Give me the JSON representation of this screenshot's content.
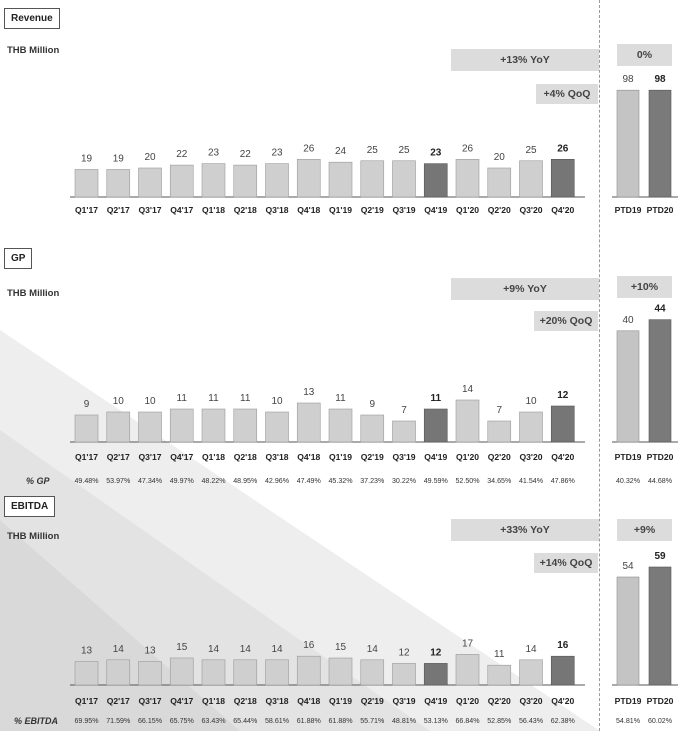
{
  "unit_label": "THB Million",
  "chart_data": [
    {
      "type": "bar",
      "title": "Revenue",
      "ylabel": "THB Million",
      "categories": [
        "Q1'17",
        "Q2'17",
        "Q3'17",
        "Q4'17",
        "Q1'18",
        "Q2'18",
        "Q3'18",
        "Q4'18",
        "Q1'19",
        "Q2'19",
        "Q3'19",
        "Q4'19",
        "Q1'20",
        "Q2'20",
        "Q3'20",
        "Q4'20"
      ],
      "values": [
        19,
        19,
        20,
        22,
        23,
        22,
        23,
        26,
        24,
        25,
        25,
        23,
        26,
        20,
        25,
        26
      ],
      "highlight": [
        "Q4'19",
        "Q4'20"
      ],
      "ytd": {
        "categories": [
          "PTD19",
          "PTD20"
        ],
        "values": [
          98,
          98
        ]
      },
      "yoy": "+13% YoY",
      "qoq": "+4% QoQ",
      "ytd_change": "0%"
    },
    {
      "type": "bar",
      "title": "GP",
      "ylabel": "THB Million",
      "categories": [
        "Q1'17",
        "Q2'17",
        "Q3'17",
        "Q4'17",
        "Q1'18",
        "Q2'18",
        "Q3'18",
        "Q4'18",
        "Q1'19",
        "Q2'19",
        "Q3'19",
        "Q4'19",
        "Q1'20",
        "Q2'20",
        "Q3'20",
        "Q4'20"
      ],
      "values": [
        9,
        10,
        10,
        11,
        11,
        11,
        10,
        13,
        11,
        9,
        7,
        11,
        14,
        7,
        10,
        12
      ],
      "highlight": [
        "Q4'19",
        "Q4'20"
      ],
      "ytd": {
        "categories": [
          "PTD19",
          "PTD20"
        ],
        "values": [
          40,
          44
        ]
      },
      "yoy": "+9% YoY",
      "qoq": "+20% QoQ",
      "ytd_change": "+10%",
      "margin_label": "% GP",
      "margins": [
        "49.48%",
        "53.97%",
        "47.34%",
        "49.97%",
        "48.22%",
        "48.95%",
        "42.96%",
        "47.49%",
        "45.32%",
        "37.23%",
        "30.22%",
        "49.59%",
        "52.50%",
        "34.65%",
        "41.54%",
        "47.86%"
      ],
      "ytd_margins": [
        "40.32%",
        "44.68%"
      ]
    },
    {
      "type": "bar",
      "title": "EBITDA",
      "ylabel": "THB Million",
      "categories": [
        "Q1'17",
        "Q2'17",
        "Q3'17",
        "Q4'17",
        "Q1'18",
        "Q2'18",
        "Q3'18",
        "Q4'18",
        "Q1'19",
        "Q2'19",
        "Q3'19",
        "Q4'19",
        "Q1'20",
        "Q2'20",
        "Q3'20",
        "Q4'20"
      ],
      "values": [
        13,
        14,
        13,
        15,
        14,
        14,
        14,
        16,
        15,
        14,
        12,
        12,
        17,
        11,
        14,
        16
      ],
      "highlight": [
        "Q4'19",
        "Q4'20"
      ],
      "ytd": {
        "categories": [
          "PTD19",
          "PTD20"
        ],
        "values": [
          54,
          59
        ]
      },
      "yoy": "+33% YoY",
      "qoq": "+14% QoQ",
      "ytd_change": "+9%",
      "margin_label": "% EBITDA",
      "margins": [
        "69.95%",
        "71.59%",
        "66.15%",
        "65.75%",
        "63.43%",
        "65.44%",
        "58.61%",
        "61.88%",
        "61.88%",
        "55.71%",
        "48.81%",
        "53.13%",
        "66.84%",
        "52.85%",
        "56.43%",
        "62.38%"
      ],
      "ytd_margins": [
        "54.81%",
        "60.02%"
      ]
    }
  ]
}
